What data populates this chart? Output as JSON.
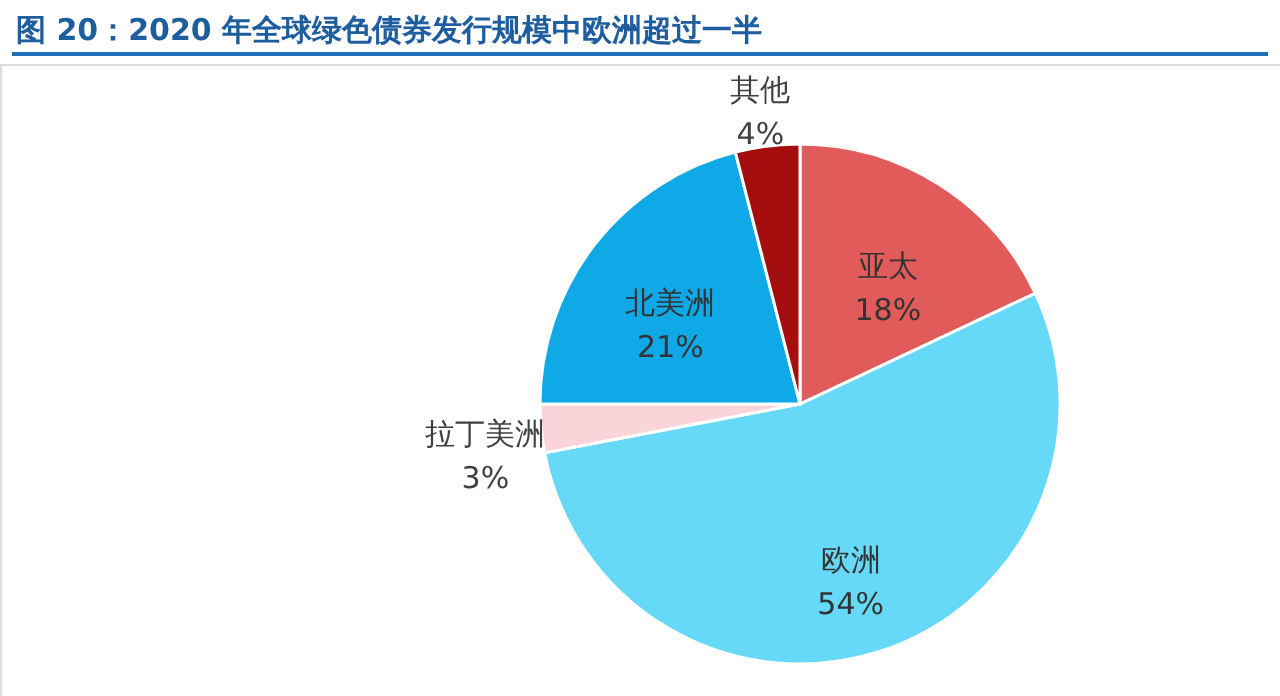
{
  "chart_data": {
    "type": "pie",
    "title": "图 20：2020 年全球绿色债券发行规模中欧洲超过一半",
    "categories": [
      "亚太",
      "欧洲",
      "拉丁美洲",
      "北美洲",
      "其他"
    ],
    "values": [
      18,
      54,
      3,
      21,
      4
    ],
    "value_labels": [
      "18%",
      "54%",
      "3%",
      "21%",
      "4%"
    ],
    "colors": [
      "#e15b5b",
      "#66d8f8",
      "#fad4d8",
      "#0ea9e6",
      "#a40e0e"
    ],
    "legend": false
  }
}
